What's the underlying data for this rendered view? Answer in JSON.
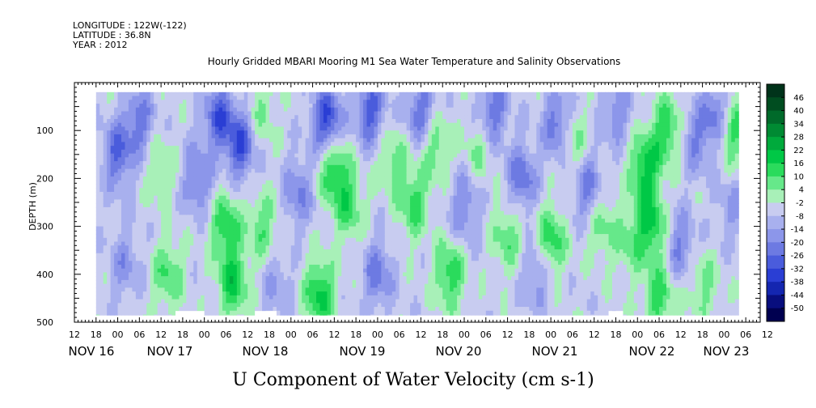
{
  "header": {
    "longitude": "LONGITUDE : 122W(-122)",
    "latitude": "LATITUDE : 36.8N",
    "year": "YEAR : 2012"
  },
  "chart_data": {
    "type": "heatmap",
    "title": "Hourly Gridded MBARI Mooring M1 Sea Water Temperature and Salinity Observations",
    "xlabel": "U Component of Water Velocity (cm s-1)",
    "ylabel": "DEPTH (m)",
    "y_axis": {
      "range": [
        0,
        500
      ],
      "inverted": true,
      "tick_values": [
        100,
        200,
        300,
        400,
        500
      ]
    },
    "x_axis": {
      "hour_labels": [
        "12",
        "18",
        "00",
        "06",
        "12",
        "18",
        "00",
        "06",
        "12",
        "18",
        "00",
        "06",
        "12",
        "18",
        "00",
        "06",
        "12",
        "18",
        "00",
        "06",
        "12",
        "18",
        "00",
        "06",
        "12",
        "18",
        "00",
        "06",
        "12",
        "18",
        "00",
        "06",
        "12"
      ],
      "day_labels": [
        "NOV 16",
        "NOV 17",
        "NOV 18",
        "NOV 19",
        "NOV 20",
        "NOV 21",
        "NOV 22",
        "NOV 23"
      ]
    },
    "colorbar": {
      "labels": [
        "46",
        "40",
        "34",
        "28",
        "22",
        "16",
        "10",
        "4",
        "-2",
        "-8",
        "-14",
        "-20",
        "-26",
        "-32",
        "-38",
        "-44",
        "-50"
      ],
      "colors": [
        "#00331a",
        "#004d20",
        "#006a2a",
        "#008a33",
        "#00aa3c",
        "#00c846",
        "#2adb5c",
        "#66e88a",
        "#a8f0b8",
        "#c8ccf0",
        "#a8b0ee",
        "#8c96ea",
        "#6d7ae2",
        "#4a5cdc",
        "#2a3ed4",
        "#1426b0",
        "#080e7e",
        "#000050"
      ]
    },
    "data_range_hours": [
      18,
      196
    ],
    "depth_range_m": [
      20,
      485
    ],
    "white_gaps": [
      {
        "from_hour": 40,
        "to_hour": 48,
        "at_depth_m": 480
      },
      {
        "from_hour": 62,
        "to_hour": 68,
        "at_depth_m": 480
      },
      {
        "from_hour": 160,
        "to_hour": 164,
        "at_depth_m": 480
      }
    ],
    "features": [
      {
        "h": 24,
        "d": 150,
        "v": -22
      },
      {
        "h": 26,
        "d": 380,
        "v": -12
      },
      {
        "h": 30,
        "d": 80,
        "v": -18
      },
      {
        "h": 36,
        "d": 180,
        "v": 10
      },
      {
        "h": 38,
        "d": 400,
        "v": 16
      },
      {
        "h": 46,
        "d": 200,
        "v": -18
      },
      {
        "h": 52,
        "d": 70,
        "v": -24
      },
      {
        "h": 54,
        "d": 300,
        "v": 20
      },
      {
        "h": 56,
        "d": 420,
        "v": 22
      },
      {
        "h": 58,
        "d": 130,
        "v": -26
      },
      {
        "h": 64,
        "d": 60,
        "v": 10
      },
      {
        "h": 64,
        "d": 300,
        "v": 14
      },
      {
        "h": 68,
        "d": 420,
        "v": -10
      },
      {
        "h": 74,
        "d": 230,
        "v": -16
      },
      {
        "h": 80,
        "d": 440,
        "v": 24
      },
      {
        "h": 82,
        "d": 80,
        "v": -30
      },
      {
        "h": 84,
        "d": 180,
        "v": 22
      },
      {
        "h": 88,
        "d": 260,
        "v": 16
      },
      {
        "h": 94,
        "d": 60,
        "v": -24
      },
      {
        "h": 96,
        "d": 400,
        "v": -18
      },
      {
        "h": 100,
        "d": 160,
        "v": 12
      },
      {
        "h": 106,
        "d": 250,
        "v": 18
      },
      {
        "h": 108,
        "d": 60,
        "v": -20
      },
      {
        "h": 112,
        "d": 130,
        "v": 14
      },
      {
        "h": 116,
        "d": 400,
        "v": 20
      },
      {
        "h": 120,
        "d": 260,
        "v": -16
      },
      {
        "h": 124,
        "d": 140,
        "v": 10
      },
      {
        "h": 128,
        "d": 60,
        "v": -20
      },
      {
        "h": 132,
        "d": 320,
        "v": 14
      },
      {
        "h": 136,
        "d": 200,
        "v": -20
      },
      {
        "h": 140,
        "d": 400,
        "v": -14
      },
      {
        "h": 144,
        "d": 330,
        "v": 20
      },
      {
        "h": 146,
        "d": 90,
        "v": -22
      },
      {
        "h": 150,
        "d": 120,
        "v": 14
      },
      {
        "h": 154,
        "d": 220,
        "v": -18
      },
      {
        "h": 158,
        "d": 300,
        "v": 12
      },
      {
        "h": 162,
        "d": 60,
        "v": -14
      },
      {
        "h": 166,
        "d": 330,
        "v": 12
      },
      {
        "h": 170,
        "d": 180,
        "v": 24
      },
      {
        "h": 172,
        "d": 300,
        "v": 22
      },
      {
        "h": 174,
        "d": 450,
        "v": 18
      },
      {
        "h": 176,
        "d": 100,
        "v": 20
      },
      {
        "h": 180,
        "d": 340,
        "v": -16
      },
      {
        "h": 184,
        "d": 120,
        "v": -14
      },
      {
        "h": 186,
        "d": 420,
        "v": 12
      },
      {
        "h": 190,
        "d": 70,
        "v": -20
      },
      {
        "h": 194,
        "d": 100,
        "v": 20
      },
      {
        "h": 194,
        "d": 260,
        "v": -10
      }
    ]
  }
}
